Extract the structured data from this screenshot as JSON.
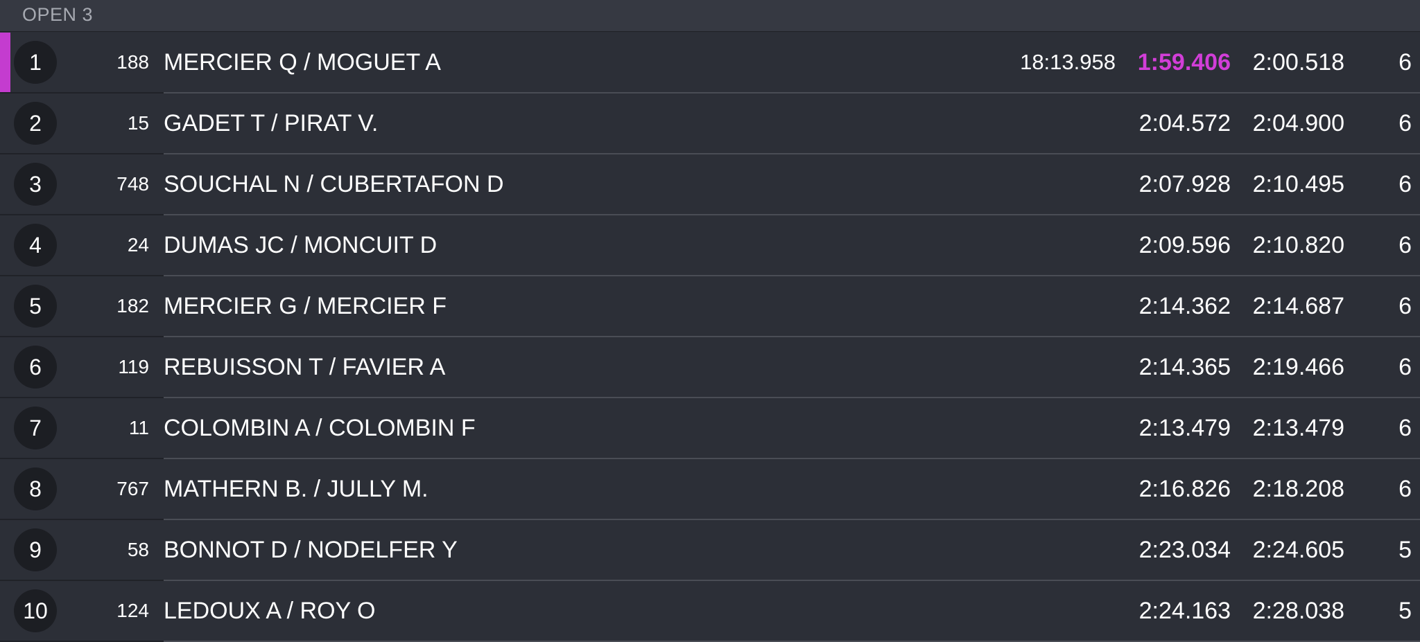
{
  "header": {
    "session": "OPEN 3"
  },
  "colors": {
    "background": "#2b2e35",
    "header": "#363942",
    "accent_fastest": "#d23ed8",
    "leader_marker": "#c43ccf"
  },
  "rows": [
    {
      "pos": "1",
      "num": "188",
      "driver": "MERCIER Q / MOGUET A",
      "total": "18:13.958",
      "best": "1:59.406",
      "last": "2:00.518",
      "laps": "6",
      "fastest": true
    },
    {
      "pos": "2",
      "num": "15",
      "driver": "GADET T / PIRAT V.",
      "total": "",
      "best": "2:04.572",
      "last": "2:04.900",
      "laps": "6",
      "fastest": false
    },
    {
      "pos": "3",
      "num": "748",
      "driver": "SOUCHAL N / CUBERTAFON D",
      "total": "",
      "best": "2:07.928",
      "last": "2:10.495",
      "laps": "6",
      "fastest": false
    },
    {
      "pos": "4",
      "num": "24",
      "driver": "DUMAS JC / MONCUIT D",
      "total": "",
      "best": "2:09.596",
      "last": "2:10.820",
      "laps": "6",
      "fastest": false
    },
    {
      "pos": "5",
      "num": "182",
      "driver": "MERCIER G / MERCIER F",
      "total": "",
      "best": "2:14.362",
      "last": "2:14.687",
      "laps": "6",
      "fastest": false
    },
    {
      "pos": "6",
      "num": "119",
      "driver": "REBUISSON T / FAVIER A",
      "total": "",
      "best": "2:14.365",
      "last": "2:19.466",
      "laps": "6",
      "fastest": false
    },
    {
      "pos": "7",
      "num": "11",
      "driver": "COLOMBIN A / COLOMBIN F",
      "total": "",
      "best": "2:13.479",
      "last": "2:13.479",
      "laps": "6",
      "fastest": false
    },
    {
      "pos": "8",
      "num": "767",
      "driver": "MATHERN B. / JULLY M.",
      "total": "",
      "best": "2:16.826",
      "last": "2:18.208",
      "laps": "6",
      "fastest": false
    },
    {
      "pos": "9",
      "num": "58",
      "driver": "BONNOT D / NODELFER Y",
      "total": "",
      "best": "2:23.034",
      "last": "2:24.605",
      "laps": "5",
      "fastest": false
    },
    {
      "pos": "10",
      "num": "124",
      "driver": "LEDOUX A / ROY O",
      "total": "",
      "best": "2:24.163",
      "last": "2:28.038",
      "laps": "5",
      "fastest": false
    }
  ]
}
